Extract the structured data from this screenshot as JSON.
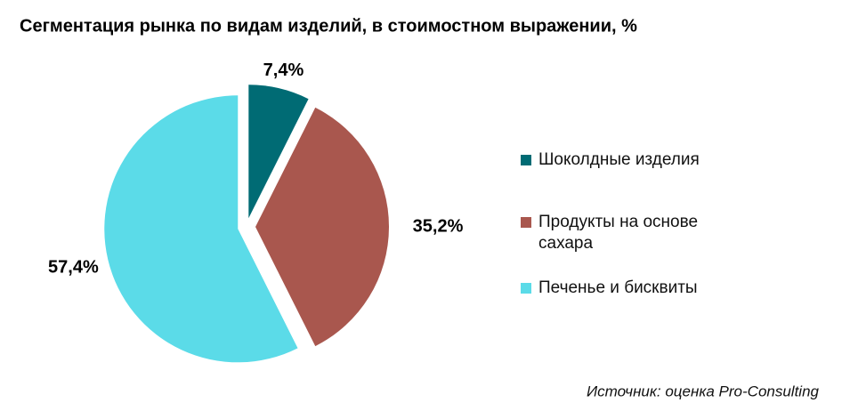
{
  "chart_data": {
    "type": "pie",
    "title": "Сегментация рынка по видам изделий, в стоимостном выражении, %",
    "categories": [
      "Шоколдные изделия",
      "Продукты на основе сахара",
      "Печенье и бисквиты"
    ],
    "values": [
      7.4,
      35.2,
      57.4
    ],
    "value_labels": [
      "7,4%",
      "35,2%",
      "57,4%"
    ],
    "colors": [
      "#006b74",
      "#a9574e",
      "#5bdbe8"
    ],
    "legend": "right",
    "annotation": "Источник: оценка Pro-Consulting"
  }
}
